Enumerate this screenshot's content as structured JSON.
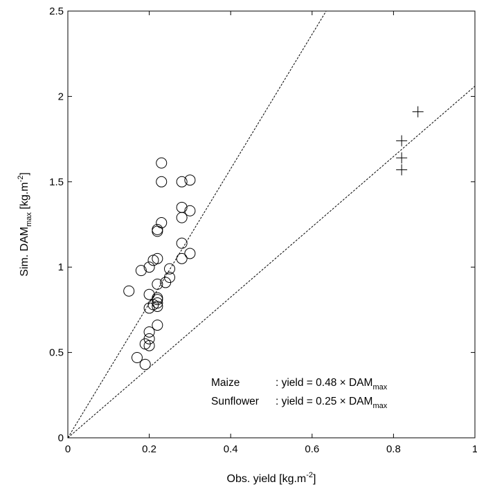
{
  "chart_data": {
    "type": "scatter",
    "xlabel": {
      "main": "Obs. yield [kg.m",
      "sup": "-2",
      "end": "]"
    },
    "ylabel": {
      "main": "Sim. DAM",
      "sub": "max",
      "mid": " [kg.m",
      "sup": "-2",
      "end": "]"
    },
    "xlim": [
      0,
      1
    ],
    "ylim": [
      0,
      2.5
    ],
    "x_ticks": [
      {
        "value": 0,
        "label": "0"
      },
      {
        "value": 0.2,
        "label": "0.2"
      },
      {
        "value": 0.4,
        "label": "0.4"
      },
      {
        "value": 0.6,
        "label": "0.6"
      },
      {
        "value": 0.8,
        "label": "0.8"
      },
      {
        "value": 1,
        "label": "1"
      }
    ],
    "y_ticks": [
      {
        "value": 0,
        "label": "0"
      },
      {
        "value": 0.5,
        "label": "0.5"
      },
      {
        "value": 1,
        "label": "1"
      },
      {
        "value": 1.5,
        "label": "1.5"
      },
      {
        "value": 2,
        "label": "2"
      },
      {
        "value": 2.5,
        "label": "2.5"
      }
    ],
    "grid": false,
    "series": [
      {
        "marker": "circle",
        "points": [
          [
            0.23,
            1.61
          ],
          [
            0.23,
            1.5
          ],
          [
            0.28,
            1.5
          ],
          [
            0.3,
            1.51
          ],
          [
            0.28,
            1.35
          ],
          [
            0.3,
            1.33
          ],
          [
            0.28,
            1.29
          ],
          [
            0.23,
            1.26
          ],
          [
            0.22,
            1.22
          ],
          [
            0.22,
            1.21
          ],
          [
            0.28,
            1.14
          ],
          [
            0.3,
            1.08
          ],
          [
            0.28,
            1.05
          ],
          [
            0.22,
            1.05
          ],
          [
            0.21,
            1.04
          ],
          [
            0.2,
            1.0
          ],
          [
            0.18,
            0.98
          ],
          [
            0.25,
            0.99
          ],
          [
            0.25,
            0.94
          ],
          [
            0.24,
            0.91
          ],
          [
            0.22,
            0.9
          ],
          [
            0.15,
            0.86
          ],
          [
            0.2,
            0.84
          ],
          [
            0.22,
            0.82
          ],
          [
            0.22,
            0.81
          ],
          [
            0.22,
            0.79
          ],
          [
            0.21,
            0.78
          ],
          [
            0.22,
            0.77
          ],
          [
            0.2,
            0.76
          ],
          [
            0.22,
            0.66
          ],
          [
            0.2,
            0.62
          ],
          [
            0.2,
            0.58
          ],
          [
            0.19,
            0.55
          ],
          [
            0.2,
            0.54
          ],
          [
            0.17,
            0.47
          ],
          [
            0.19,
            0.43
          ]
        ]
      },
      {
        "marker": "plus",
        "points": [
          [
            0.86,
            1.91
          ],
          [
            0.82,
            1.74
          ],
          [
            0.82,
            1.64
          ],
          [
            0.82,
            1.57
          ]
        ]
      }
    ],
    "reference_lines": [
      {
        "slope": 3.94,
        "style": "dashed"
      },
      {
        "slope": 2.06,
        "style": "dashed"
      }
    ],
    "annotations": [
      {
        "name": "Maize",
        "sep": ": yield = 0.48 × DAM",
        "sub": "max"
      },
      {
        "name": "Sunflower",
        "sep": ": yield = 0.25 × DAM",
        "sub": "max"
      }
    ]
  }
}
